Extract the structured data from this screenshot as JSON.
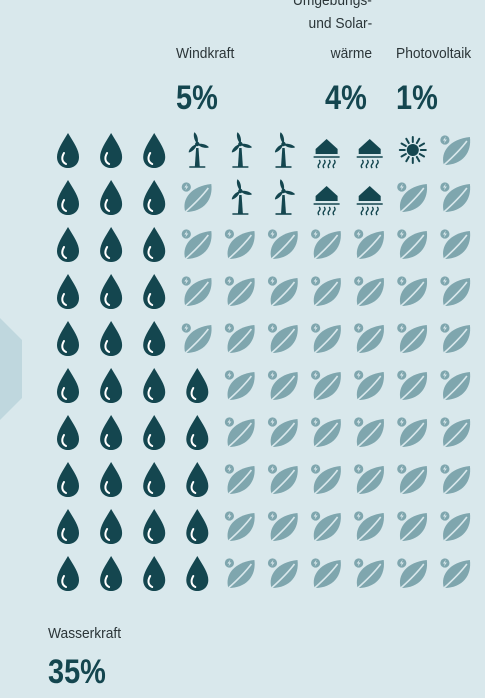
{
  "colors": {
    "background": "#d9e8ec",
    "water": "#14464f",
    "wind": "#14464f",
    "ambient_solar": "#14464f",
    "photovoltaic": "#14464f",
    "other": "#7fa6ae",
    "arrow": "#bfd7de"
  },
  "chart_data": {
    "type": "unit-grid",
    "grid": {
      "columns": 10,
      "rows": 10,
      "unit_percent": 1
    },
    "series": [
      {
        "name": "Wasserkraft",
        "value": 35,
        "value_label": "35%",
        "icon": "water-drop-icon",
        "color": "#14464f"
      },
      {
        "name": "Windkraft",
        "value": 5,
        "value_label": "5%",
        "icon": "wind-turbine-icon",
        "color": "#14464f"
      },
      {
        "name": "Umgebungs- und Solar-wärme",
        "value": 4,
        "value_label": "4%",
        "icon": "heat-house-icon",
        "color": "#14464f"
      },
      {
        "name": "Photovoltaik",
        "value": 1,
        "value_label": "1%",
        "icon": "sun-icon",
        "color": "#14464f"
      },
      {
        "name": "",
        "value": 55,
        "icon": "leaf-energy-icon",
        "color": "#7fa6ae"
      }
    ]
  },
  "labels": {
    "wind_name": "Windkraft",
    "wind_pct": "5%",
    "ambient_line1": "Umgebungs-",
    "ambient_line2": "und Solar-",
    "ambient_line3": "wärme",
    "ambient_pct": "4%",
    "pv_name": "Photovoltaik",
    "pv_pct": "1%",
    "water_name": "Wasserkraft",
    "water_pct": "35%"
  }
}
